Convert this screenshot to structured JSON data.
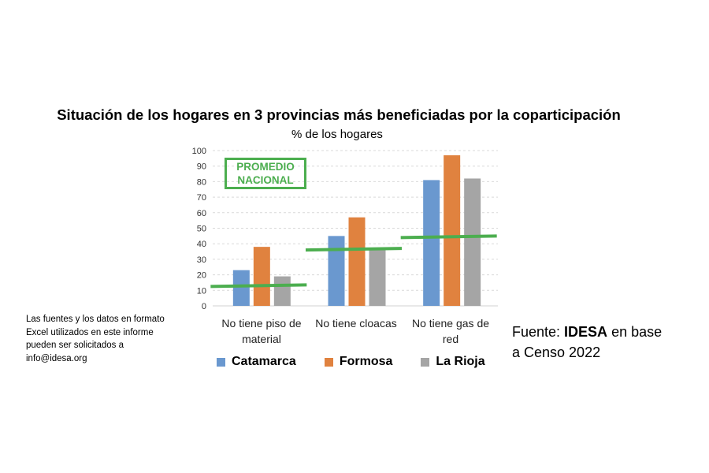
{
  "chart_data": {
    "type": "bar",
    "title": "Situación de los hogares en 3 provincias más beneficiadas por la coparticipación",
    "ylabel": "% de los hogares",
    "ylim": [
      0,
      100
    ],
    "yticks": [
      0,
      10,
      20,
      30,
      40,
      50,
      60,
      70,
      80,
      90,
      100
    ],
    "categories": [
      "No tiene piso de material",
      "No tiene cloacas",
      "No tiene gas de red"
    ],
    "series": [
      {
        "name": "Catamarca",
        "color": "#6a98cf",
        "values": [
          23,
          45,
          81
        ]
      },
      {
        "name": "Formosa",
        "color": "#e0823f",
        "values": [
          38,
          57,
          97
        ]
      },
      {
        "name": "La Rioja",
        "color": "#a5a5a5",
        "values": [
          19,
          36,
          82
        ]
      }
    ],
    "national_average": {
      "label_line1": "PROMEDIO",
      "label_line2": "NACIONAL",
      "color": "#4cae4f",
      "values": [
        13,
        36.5,
        44.5
      ]
    },
    "grid": true,
    "legend": "bottom"
  },
  "note": "Las fuentes y los datos en formato Excel utilizados en este informe pueden ser solicitados a info@idesa.org",
  "source": {
    "prefix": "Fuente: ",
    "org": "IDESA",
    "suffix": " en base a Censo 2022"
  }
}
